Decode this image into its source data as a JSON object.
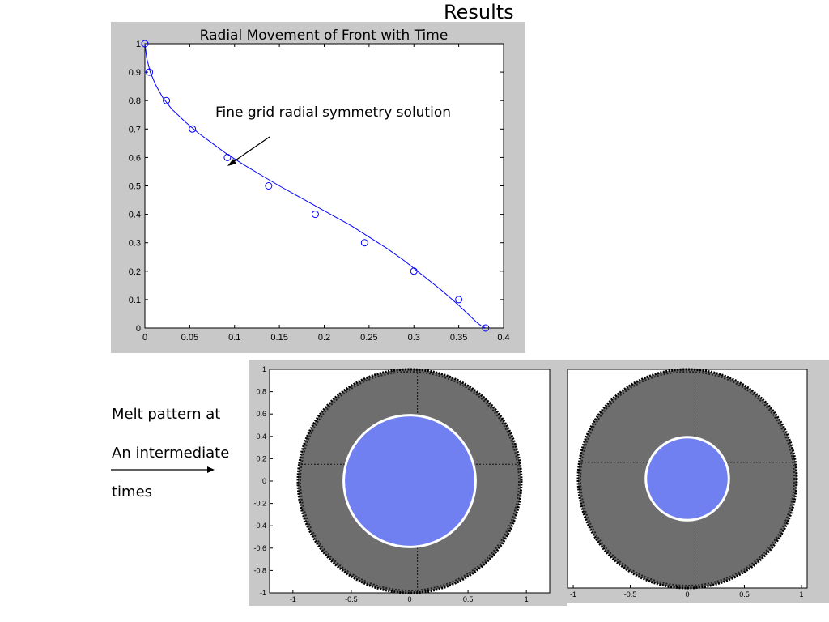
{
  "slide": {
    "title": "Results",
    "side_note_lines": [
      "Melt pattern at",
      "An intermediate",
      "times"
    ]
  },
  "colors": {
    "figure_background": "#c8c8c8",
    "line": "#0000ff",
    "marker": "#0000ff",
    "mesh": "#000000",
    "melt": "#7080f0",
    "front": "#ffffff"
  },
  "chart_data": [
    {
      "type": "line",
      "title": "Radial Movement of Front with Time",
      "xlabel": "",
      "ylabel": "",
      "xlim": [
        0,
        0.4
      ],
      "ylim": [
        0,
        1
      ],
      "xticks": [
        "0",
        "0.05",
        "0.1",
        "0.15",
        "0.2",
        "0.25",
        "0.3",
        "0.35",
        "0.4"
      ],
      "yticks": [
        "0",
        "0.1",
        "0.2",
        "0.3",
        "0.4",
        "0.5",
        "0.6",
        "0.7",
        "0.8",
        "0.9",
        "1"
      ],
      "grid": false,
      "series": [
        {
          "style": "line",
          "x": [
            0.0,
            0.002,
            0.006,
            0.012,
            0.02,
            0.03,
            0.045,
            0.06,
            0.075,
            0.09,
            0.11,
            0.13,
            0.15,
            0.17,
            0.19,
            0.21,
            0.23,
            0.25,
            0.27,
            0.29,
            0.31,
            0.33,
            0.35,
            0.36,
            0.37,
            0.375,
            0.38
          ],
          "y": [
            1.0,
            0.95,
            0.9,
            0.855,
            0.81,
            0.77,
            0.725,
            0.685,
            0.65,
            0.615,
            0.575,
            0.537,
            0.5,
            0.465,
            0.43,
            0.395,
            0.36,
            0.32,
            0.28,
            0.235,
            0.185,
            0.135,
            0.08,
            0.05,
            0.02,
            0.008,
            0.0
          ]
        },
        {
          "style": "markers",
          "x": [
            0.0,
            0.005,
            0.024,
            0.053,
            0.092,
            0.138,
            0.19,
            0.245,
            0.3,
            0.35,
            0.38
          ],
          "y": [
            1.0,
            0.9,
            0.8,
            0.7,
            0.6,
            0.5,
            0.4,
            0.3,
            0.2,
            0.1,
            0.0
          ]
        }
      ],
      "annotations": [
        {
          "text": "Fine grid radial symmetry solution",
          "x": 0.09,
          "y": 0.57,
          "arrow_to": [
            0.09,
            0.575
          ]
        }
      ]
    },
    {
      "type": "scatter",
      "xlim": [
        -1.2,
        1.2
      ],
      "ylim": [
        -1,
        1
      ],
      "xticks": [
        "-1",
        "-0.5",
        "0",
        "0.5",
        "1"
      ],
      "yticks": [
        "1",
        "0.8",
        "0.6",
        "0.4",
        "0.2",
        "0",
        "-0.2",
        "-0.4",
        "-0.6",
        "-0.8",
        "-1"
      ],
      "domain_radius": 1.0,
      "melt_front_radius": 0.59
    },
    {
      "type": "scatter",
      "xlim": [
        -1.05,
        1.05
      ],
      "ylim": [
        -1,
        1
      ],
      "xticks": [
        "-1",
        "-0.5",
        "0",
        "0.5",
        "1"
      ],
      "yticks": [],
      "domain_radius": 1.0,
      "melt_front_radius": 0.38
    }
  ]
}
